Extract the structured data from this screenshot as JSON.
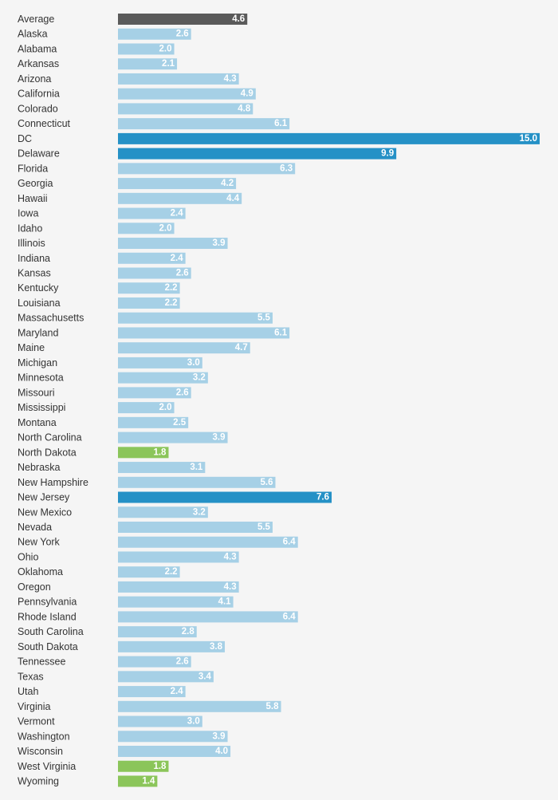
{
  "chart_data": {
    "type": "bar",
    "orientation": "horizontal",
    "title": "",
    "xlabel": "",
    "ylabel": "",
    "xlim": [
      0,
      15
    ],
    "grid": false,
    "legend": "none",
    "colors": {
      "average": "#5a5a5a",
      "default": "#a6d0e6",
      "high": "#2591c6",
      "low": "#8bc55a"
    },
    "categories": [
      "Average",
      "Alaska",
      "Alabama",
      "Arkansas",
      "Arizona",
      "California",
      "Colorado",
      "Connecticut",
      "DC",
      "Delaware",
      "Florida",
      "Georgia",
      "Hawaii",
      "Iowa",
      "Idaho",
      "Illinois",
      "Indiana",
      "Kansas",
      "Kentucky",
      "Louisiana",
      "Massachusetts",
      "Maryland",
      "Maine",
      "Michigan",
      "Minnesota",
      "Missouri",
      "Mississippi",
      "Montana",
      "North Carolina",
      "North Dakota",
      "Nebraska",
      "New Hampshire",
      "New Jersey",
      "New Mexico",
      "Nevada",
      "New York",
      "Ohio",
      "Oklahoma",
      "Oregon",
      "Pennsylvania",
      "Rhode Island",
      "South Carolina",
      "South Dakota",
      "Tennessee",
      "Texas",
      "Utah",
      "Virginia",
      "Vermont",
      "Washington",
      "Wisconsin",
      "West Virginia",
      "Wyoming"
    ],
    "values": [
      4.6,
      2.6,
      2.0,
      2.1,
      4.3,
      4.9,
      4.8,
      6.1,
      15.0,
      9.9,
      6.3,
      4.2,
      4.4,
      2.4,
      2.0,
      3.9,
      2.4,
      2.6,
      2.2,
      2.2,
      5.5,
      6.1,
      4.7,
      3.0,
      3.2,
      2.6,
      2.0,
      2.5,
      3.9,
      1.8,
      3.1,
      5.6,
      7.6,
      3.2,
      5.5,
      6.4,
      4.3,
      2.2,
      4.3,
      4.1,
      6.4,
      2.8,
      3.8,
      2.6,
      3.4,
      2.4,
      5.8,
      3.0,
      3.9,
      4.0,
      1.8,
      1.4
    ],
    "value_labels": [
      "4.6",
      "2.6",
      "2.0",
      "2.1",
      "4.3",
      "4.9",
      "4.8",
      "6.1",
      "15.0",
      "9.9",
      "6.3",
      "4.2",
      "4.4",
      "2.4",
      "2.0",
      "3.9",
      "2.4",
      "2.6",
      "2.2",
      "2.2",
      "5.5",
      "6.1",
      "4.7",
      "3.0",
      "3.2",
      "2.6",
      "2.0",
      "2.5",
      "3.9",
      "1.8",
      "3.1",
      "5.6",
      "7.6",
      "3.2",
      "5.5",
      "6.4",
      "4.3",
      "2.2",
      "4.3",
      "4.1",
      "6.4",
      "2.8",
      "3.8",
      "2.6",
      "3.4",
      "2.4",
      "5.8",
      "3.0",
      "3.9",
      "4.0",
      "1.8",
      "1.4"
    ],
    "highlight": [
      "average",
      "default",
      "default",
      "default",
      "default",
      "default",
      "default",
      "default",
      "high",
      "high",
      "default",
      "default",
      "default",
      "default",
      "default",
      "default",
      "default",
      "default",
      "default",
      "default",
      "default",
      "default",
      "default",
      "default",
      "default",
      "default",
      "default",
      "default",
      "default",
      "low",
      "default",
      "default",
      "high",
      "default",
      "default",
      "default",
      "default",
      "default",
      "default",
      "default",
      "default",
      "default",
      "default",
      "default",
      "default",
      "default",
      "default",
      "default",
      "default",
      "default",
      "low",
      "low"
    ]
  }
}
